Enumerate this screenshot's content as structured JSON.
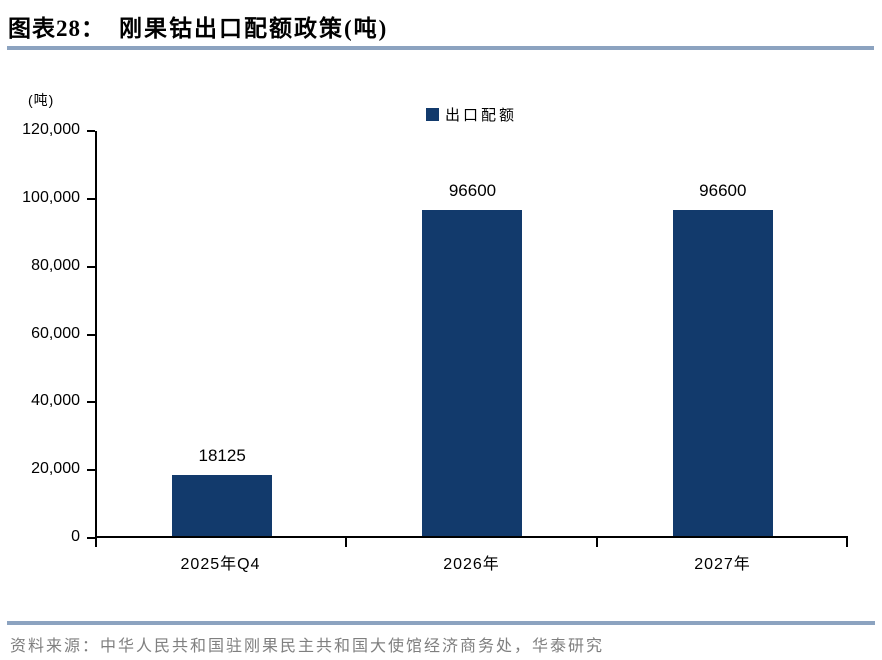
{
  "header": {
    "figure_label": "图表28：",
    "title": "刚果钴出口配额政策(吨)"
  },
  "chart": {
    "unit_label": "(吨)",
    "legend_label": "出口配额"
  },
  "chart_data": {
    "type": "bar",
    "title": "刚果钴出口配额政策(吨)",
    "categories": [
      "2025年Q4",
      "2026年",
      "2027年"
    ],
    "series": [
      {
        "name": "出口配额",
        "values": [
          18125,
          96600,
          96600
        ]
      }
    ],
    "value_labels": [
      "18125",
      "96600",
      "96600"
    ],
    "xlabel": "",
    "ylabel": "(吨)",
    "ylim": [
      0,
      120000
    ],
    "yticks": [
      0,
      20000,
      40000,
      60000,
      80000,
      100000,
      120000
    ],
    "ytick_labels": [
      "0",
      "20,000",
      "40,000",
      "60,000",
      "80,000",
      "100,000",
      "120,000"
    ],
    "grid": false,
    "legend_position": "top-center",
    "bar_color": "#123A6C"
  },
  "footer": {
    "source": "资料来源：中华人民共和国驻刚果民主共和国大使馆经济商务处，华泰研究"
  },
  "colors": {
    "bar": "#123A6C",
    "rule": "#8CA3C0",
    "axis": "#000000",
    "source_text": "#7F7F7F"
  }
}
